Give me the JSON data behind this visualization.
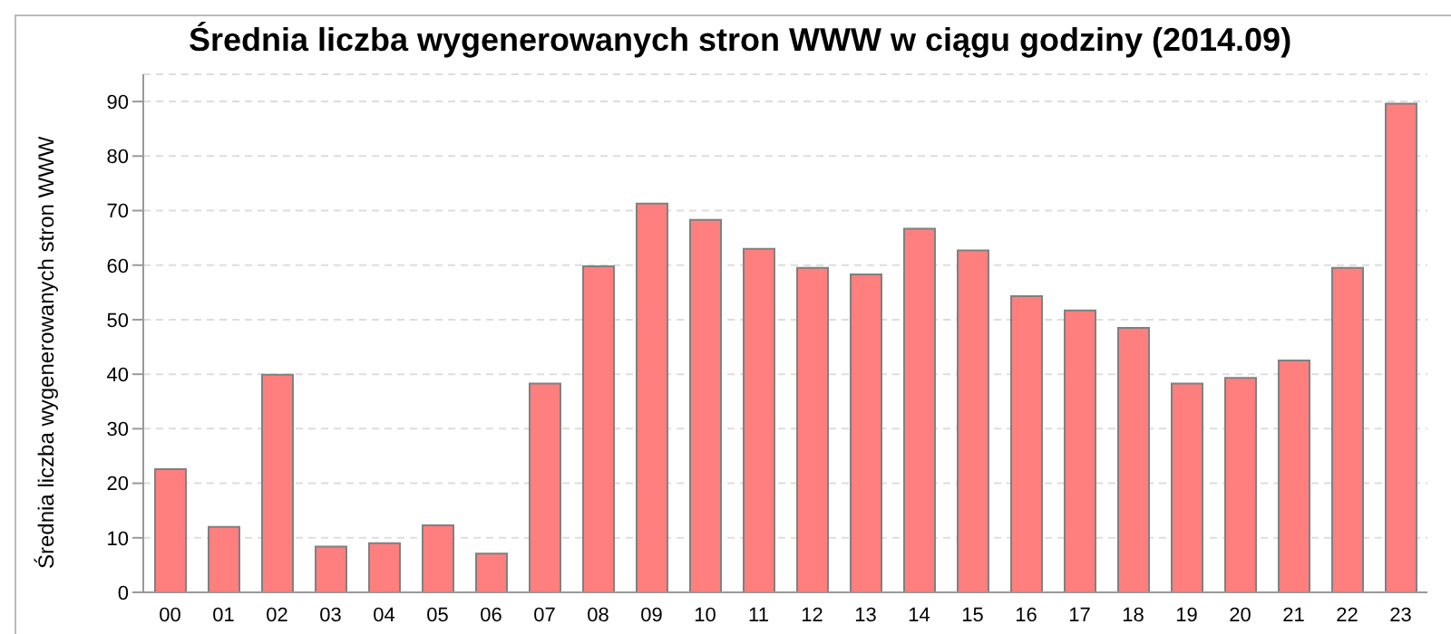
{
  "chart_data": {
    "type": "bar",
    "title": "Średnia liczba wygenerowanych stron WWW w ciągu godziny (2014.09)",
    "ylabel": "Średnia liczba wygenerowanych stron WWW",
    "categories": [
      "00",
      "01",
      "02",
      "03",
      "04",
      "05",
      "06",
      "07",
      "08",
      "09",
      "10",
      "11",
      "12",
      "13",
      "14",
      "15",
      "16",
      "17",
      "18",
      "19",
      "20",
      "21",
      "22",
      "23"
    ],
    "values": [
      22.6,
      12,
      39.9,
      8.4,
      9,
      12.3,
      7.1,
      38.3,
      59.8,
      71.3,
      68.3,
      63,
      59.5,
      58.3,
      66.7,
      62.7,
      54.3,
      51.7,
      48.5,
      38.3,
      39.3,
      42.5,
      59.5,
      89.6
    ],
    "color": "#ff7f7f",
    "ylim": [
      0,
      95
    ],
    "yticks": [
      0,
      10,
      20,
      30,
      40,
      50,
      60,
      70,
      80,
      90
    ],
    "grid": "y",
    "legend": false
  }
}
